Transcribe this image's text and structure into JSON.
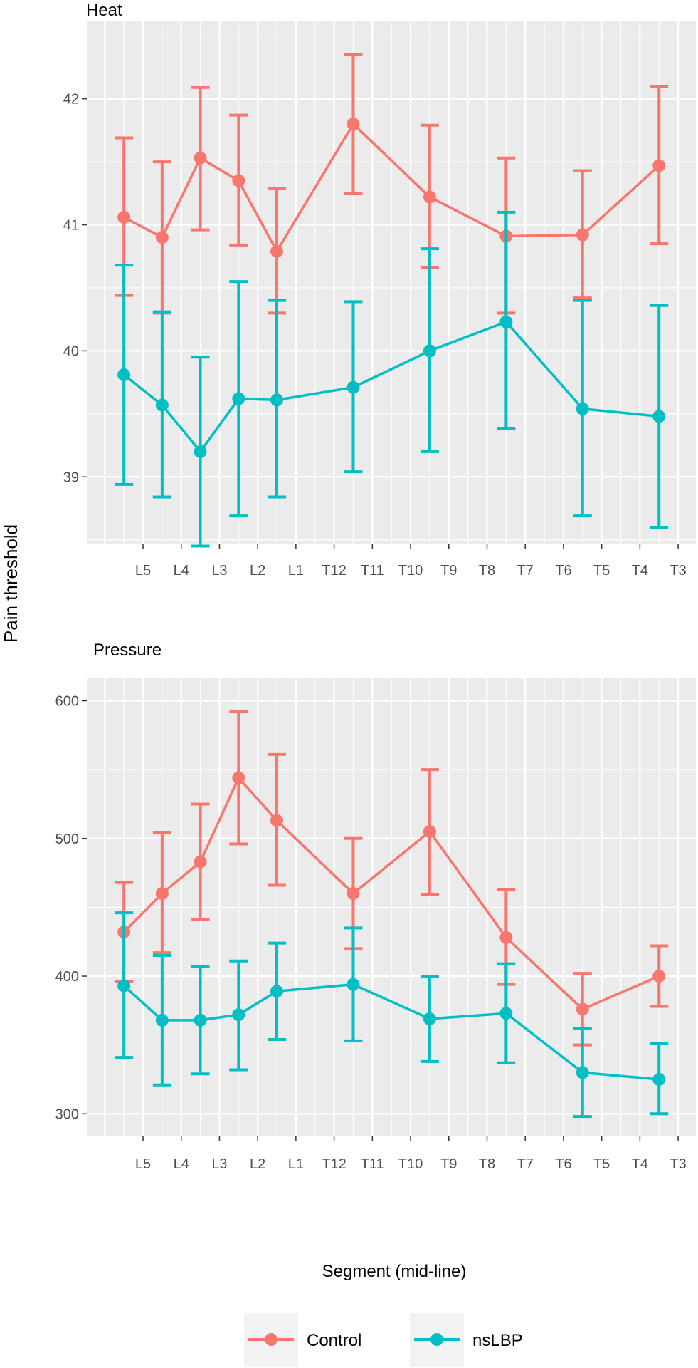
{
  "figure": {
    "y_axis_label": "Pain threshold",
    "x_axis_label": "Segment (mid-line)"
  },
  "colors": {
    "control": "#f8766d",
    "nslbp": "#00bfc4",
    "panel_bg": "#ebebeb",
    "grid": "#ffffff",
    "axis_text": "#4d4d4d"
  },
  "legend": {
    "items": [
      {
        "label": "Control",
        "color": "#f8766d"
      },
      {
        "label": "nsLBP",
        "color": "#00bfc4"
      }
    ]
  },
  "chart_data": [
    {
      "type": "line",
      "title": "Heat",
      "xlabel": "Segment (mid-line)",
      "ylabel": "Pain threshold",
      "categories": [
        "L5",
        "L4",
        "L3",
        "L2",
        "L1",
        "T12",
        "T11",
        "T10",
        "T9",
        "T8",
        "T7",
        "T6",
        "T5",
        "T4",
        "T3"
      ],
      "ylim": [
        38.5,
        42.6
      ],
      "yticks": [
        39,
        40,
        41,
        42
      ],
      "series": [
        {
          "name": "Control",
          "points": [
            {
              "x": -0.5,
              "y": 41.06,
              "lo": 40.44,
              "hi": 41.69
            },
            {
              "x": 0.5,
              "y": 40.9,
              "lo": 40.3,
              "hi": 41.5
            },
            {
              "x": 1.5,
              "y": 41.53,
              "lo": 40.96,
              "hi": 42.09
            },
            {
              "x": 2.5,
              "y": 41.35,
              "lo": 40.84,
              "hi": 41.87
            },
            {
              "x": 3.5,
              "y": 40.79,
              "lo": 40.3,
              "hi": 41.29
            },
            {
              "x": 5.5,
              "y": 41.8,
              "lo": 41.25,
              "hi": 42.35
            },
            {
              "x": 7.5,
              "y": 41.22,
              "lo": 40.66,
              "hi": 41.79
            },
            {
              "x": 9.5,
              "y": 40.91,
              "lo": 40.3,
              "hi": 41.53
            },
            {
              "x": 11.5,
              "y": 40.92,
              "lo": 40.42,
              "hi": 41.43
            },
            {
              "x": 13.5,
              "y": 41.47,
              "lo": 40.85,
              "hi": 42.1
            }
          ]
        },
        {
          "name": "nsLBP",
          "points": [
            {
              "x": -0.5,
              "y": 39.81,
              "lo": 38.94,
              "hi": 40.68
            },
            {
              "x": 0.5,
              "y": 39.57,
              "lo": 38.84,
              "hi": 40.31
            },
            {
              "x": 1.5,
              "y": 39.2,
              "lo": 38.45,
              "hi": 39.95
            },
            {
              "x": 2.5,
              "y": 39.62,
              "lo": 38.69,
              "hi": 40.55
            },
            {
              "x": 3.5,
              "y": 39.61,
              "lo": 38.84,
              "hi": 40.4
            },
            {
              "x": 5.5,
              "y": 39.71,
              "lo": 39.04,
              "hi": 40.39
            },
            {
              "x": 7.5,
              "y": 40.0,
              "lo": 39.2,
              "hi": 40.81
            },
            {
              "x": 9.5,
              "y": 40.23,
              "lo": 39.38,
              "hi": 41.1
            },
            {
              "x": 11.5,
              "y": 39.54,
              "lo": 38.69,
              "hi": 40.4
            },
            {
              "x": 13.5,
              "y": 39.48,
              "lo": 38.6,
              "hi": 40.36
            }
          ]
        }
      ]
    },
    {
      "type": "line",
      "title": "Pressure",
      "xlabel": "Segment (mid-line)",
      "ylabel": "Pain threshold",
      "categories": [
        "L5",
        "L4",
        "L3",
        "L2",
        "L1",
        "T12",
        "T11",
        "T10",
        "T9",
        "T8",
        "T7",
        "T6",
        "T5",
        "T4",
        "T3"
      ],
      "ylim": [
        283,
        616
      ],
      "yticks": [
        300,
        400,
        500,
        600
      ],
      "series": [
        {
          "name": "Control",
          "points": [
            {
              "x": -0.5,
              "y": 432,
              "lo": 396,
              "hi": 468
            },
            {
              "x": 0.5,
              "y": 460,
              "lo": 417,
              "hi": 504
            },
            {
              "x": 1.5,
              "y": 483,
              "lo": 441,
              "hi": 525
            },
            {
              "x": 2.5,
              "y": 544,
              "lo": 496,
              "hi": 592
            },
            {
              "x": 3.5,
              "y": 513,
              "lo": 466,
              "hi": 561
            },
            {
              "x": 5.5,
              "y": 460,
              "lo": 420,
              "hi": 500
            },
            {
              "x": 7.5,
              "y": 505,
              "lo": 459,
              "hi": 550
            },
            {
              "x": 9.5,
              "y": 428,
              "lo": 394,
              "hi": 463
            },
            {
              "x": 11.5,
              "y": 376,
              "lo": 350,
              "hi": 402
            },
            {
              "x": 13.5,
              "y": 400,
              "lo": 378,
              "hi": 422
            }
          ]
        },
        {
          "name": "nsLBP",
          "points": [
            {
              "x": -0.5,
              "y": 393,
              "lo": 341,
              "hi": 446
            },
            {
              "x": 0.5,
              "y": 368,
              "lo": 321,
              "hi": 415
            },
            {
              "x": 1.5,
              "y": 368,
              "lo": 329,
              "hi": 407
            },
            {
              "x": 2.5,
              "y": 372,
              "lo": 332,
              "hi": 411
            },
            {
              "x": 3.5,
              "y": 389,
              "lo": 354,
              "hi": 424
            },
            {
              "x": 5.5,
              "y": 394,
              "lo": 353,
              "hi": 435
            },
            {
              "x": 7.5,
              "y": 369,
              "lo": 338,
              "hi": 400
            },
            {
              "x": 9.5,
              "y": 373,
              "lo": 337,
              "hi": 409
            },
            {
              "x": 11.5,
              "y": 330,
              "lo": 298,
              "hi": 362
            },
            {
              "x": 13.5,
              "y": 325,
              "lo": 300,
              "hi": 351
            }
          ]
        }
      ]
    }
  ]
}
